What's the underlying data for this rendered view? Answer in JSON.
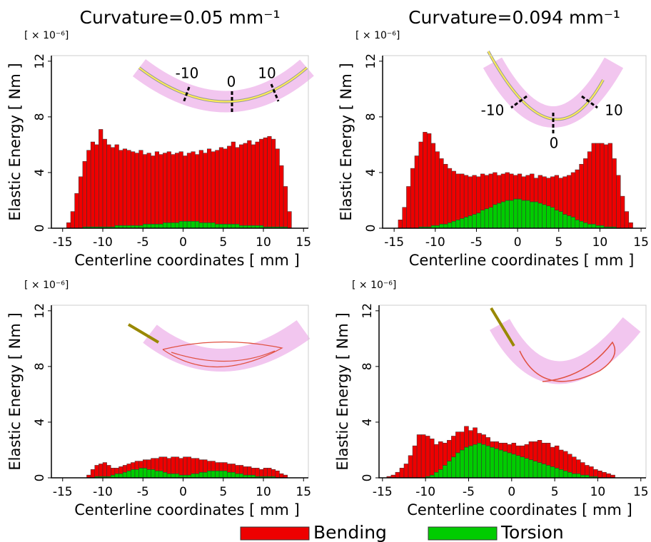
{
  "chart_data": [
    {
      "type": "histogram",
      "title": "Curvature=0.05 mm⁻¹",
      "y_multiplier": "[ × 10⁻⁶]",
      "ylabel": "Elastic Energy  [ Nm ]",
      "xlabel": "Centerline coordinates [ mm ]",
      "annotations": [
        "-10",
        "0",
        "10"
      ],
      "bins": [
        -15,
        -14.5,
        -14,
        -13.5,
        -13,
        -12.5,
        -12,
        -11.5,
        -11,
        -10.5,
        -10,
        -9.5,
        -9,
        -8.5,
        -8,
        -7.5,
        -7,
        -6.5,
        -6,
        -5.5,
        -5,
        -4.5,
        -4,
        -3.5,
        -3,
        -2.5,
        -2,
        -1.5,
        -1,
        -0.5,
        0,
        0.5,
        1,
        1.5,
        2,
        2.5,
        3,
        3.5,
        4,
        4.5,
        5,
        5.5,
        6,
        6.5,
        7,
        7.5,
        8,
        8.5,
        9,
        9.5,
        10,
        10.5,
        11,
        11.5,
        12,
        12.5,
        13,
        13.5,
        14,
        14.5,
        15
      ],
      "series": [
        {
          "name": "Torsion",
          "color": "#00cc00",
          "values": [
            0,
            0,
            0,
            0,
            0,
            0.1,
            0.1,
            0.1,
            0.1,
            0.1,
            0.1,
            0.1,
            0.1,
            0.2,
            0.2,
            0.2,
            0.2,
            0.2,
            0.2,
            0.2,
            0.3,
            0.3,
            0.3,
            0.3,
            0.3,
            0.4,
            0.4,
            0.4,
            0.4,
            0.5,
            0.5,
            0.5,
            0.5,
            0.5,
            0.4,
            0.4,
            0.4,
            0.4,
            0.3,
            0.3,
            0.3,
            0.3,
            0.3,
            0.3,
            0.2,
            0.2,
            0.2,
            0.2,
            0.2,
            0.2,
            0.1,
            0.1,
            0.1,
            0.1,
            0.1,
            0.1,
            0,
            0,
            0,
            0
          ]
        },
        {
          "name": "Bending",
          "color": "#ee0000",
          "values": [
            0,
            0.4,
            1.2,
            2.5,
            3.7,
            4.7,
            5.5,
            6.1,
            5.9,
            7.0,
            6.3,
            5.9,
            5.7,
            5.8,
            5.4,
            5.5,
            5.4,
            5.3,
            5.2,
            5.4,
            5.0,
            5.1,
            4.9,
            5.2,
            5.0,
            5.0,
            5.1,
            4.9,
            5.0,
            5.0,
            4.7,
            4.9,
            5.0,
            4.8,
            5.2,
            5.0,
            5.3,
            5.1,
            5.3,
            5.5,
            5.4,
            5.6,
            5.9,
            5.5,
            5.8,
            5.9,
            6.1,
            5.8,
            6.0,
            6.2,
            6.4,
            6.5,
            6.3,
            5.6,
            4.4,
            2.9,
            1.2,
            0,
            0,
            0
          ]
        }
      ],
      "xlim": [
        -16.4,
        15.6
      ],
      "ylim": [
        0,
        12.4
      ],
      "xticks": [
        -15,
        -10,
        -5,
        0,
        5,
        10,
        15
      ],
      "yticks": [
        0,
        4,
        8,
        12
      ]
    },
    {
      "type": "histogram",
      "title": "Curvature=0.094 mm⁻¹",
      "y_multiplier": "[ × 10⁻⁶]",
      "ylabel": "Elastic Energy  [ Nm ]",
      "xlabel": "Centerline coordinates [ mm ]",
      "annotations": [
        "-10",
        "0",
        "10"
      ],
      "bins": [
        -15,
        -14.5,
        -14,
        -13.5,
        -13,
        -12.5,
        -12,
        -11.5,
        -11,
        -10.5,
        -10,
        -9.5,
        -9,
        -8.5,
        -8,
        -7.5,
        -7,
        -6.5,
        -6,
        -5.5,
        -5,
        -4.5,
        -4,
        -3.5,
        -3,
        -2.5,
        -2,
        -1.5,
        -1,
        -0.5,
        0,
        0.5,
        1,
        1.5,
        2,
        2.5,
        3,
        3.5,
        4,
        4.5,
        5,
        5.5,
        6,
        6.5,
        7,
        7.5,
        8,
        8.5,
        9,
        9.5,
        10,
        10.5,
        11,
        11.5,
        12,
        12.5,
        13,
        13.5,
        14,
        14.5,
        15
      ],
      "series": [
        {
          "color": "#00cc00",
          "values": [
            0,
            0,
            0,
            0,
            0,
            0,
            0.1,
            0.1,
            0.1,
            0.2,
            0.2,
            0.3,
            0.3,
            0.4,
            0.5,
            0.6,
            0.7,
            0.8,
            0.9,
            1.0,
            1.1,
            1.3,
            1.4,
            1.5,
            1.7,
            1.8,
            1.9,
            2.0,
            2.0,
            2.1,
            2.1,
            2.0,
            2.0,
            1.9,
            1.9,
            1.8,
            1.7,
            1.6,
            1.5,
            1.3,
            1.2,
            1.0,
            0.9,
            0.8,
            0.6,
            0.5,
            0.4,
            0.3,
            0.3,
            0.2,
            0.2,
            0.1,
            0.1,
            0.1,
            0,
            0,
            0,
            0,
            0,
            0
          ]
        },
        {
          "color": "#ee0000",
          "values": [
            0,
            0.6,
            1.5,
            3.0,
            4.3,
            5.2,
            6.1,
            6.8,
            6.7,
            5.9,
            5.3,
            4.7,
            4.3,
            3.9,
            3.6,
            3.3,
            3.2,
            3.0,
            2.8,
            2.8,
            2.6,
            2.6,
            2.4,
            2.4,
            2.3,
            2.0,
            2.0,
            2.0,
            1.9,
            1.7,
            1.8,
            1.7,
            1.8,
            2.0,
            1.7,
            2.0,
            2.0,
            2.0,
            2.2,
            2.5,
            2.4,
            2.7,
            2.9,
            3.2,
            3.6,
            4.1,
            4.6,
            5.2,
            5.8,
            5.9,
            5.9,
            5.9,
            6.0,
            4.9,
            3.8,
            2.3,
            1.2,
            0.4,
            0,
            0
          ]
        }
      ],
      "xlim": [
        -16.4,
        15.6
      ],
      "ylim": [
        0,
        12.4
      ],
      "xticks": [
        -15,
        -10,
        -5,
        0,
        5,
        10,
        15
      ],
      "yticks": [
        0,
        4,
        8,
        12
      ]
    },
    {
      "type": "histogram",
      "y_multiplier": "[ × 10⁻⁶]",
      "ylabel": "Elastic Energy  [ Nm ]",
      "xlabel": "Centerline coordinates [ mm ]",
      "bins": [
        -15,
        -14.5,
        -14,
        -13.5,
        -13,
        -12.5,
        -12,
        -11.5,
        -11,
        -10.5,
        -10,
        -9.5,
        -9,
        -8.5,
        -8,
        -7.5,
        -7,
        -6.5,
        -6,
        -5.5,
        -5,
        -4.5,
        -4,
        -3.5,
        -3,
        -2.5,
        -2,
        -1.5,
        -1,
        -0.5,
        0,
        0.5,
        1,
        1.5,
        2,
        2.5,
        3,
        3.5,
        4,
        4.5,
        5,
        5.5,
        6,
        6.5,
        7,
        7.5,
        8,
        8.5,
        9,
        9.5,
        10,
        10.5,
        11,
        11.5,
        12,
        12.5,
        13,
        13.5,
        14,
        14.5,
        15
      ],
      "series": [
        {
          "color": "#00cc00",
          "values": [
            0,
            0,
            0,
            0,
            0,
            0,
            0,
            0,
            0.1,
            0.1,
            0.1,
            0.1,
            0.2,
            0.3,
            0.3,
            0.4,
            0.5,
            0.6,
            0.6,
            0.7,
            0.7,
            0.6,
            0.6,
            0.5,
            0.5,
            0.4,
            0.3,
            0.3,
            0.3,
            0.2,
            0.2,
            0.2,
            0.3,
            0.3,
            0.4,
            0.4,
            0.5,
            0.5,
            0.5,
            0.5,
            0.5,
            0.4,
            0.4,
            0.3,
            0.3,
            0.2,
            0.2,
            0.2,
            0.1,
            0.1,
            0.1,
            0.1,
            0.1,
            0,
            0,
            0,
            0,
            0,
            0,
            0
          ]
        },
        {
          "color": "#ee0000",
          "values": [
            0,
            0,
            0,
            0,
            0,
            0,
            0.2,
            0.6,
            0.8,
            0.9,
            1.0,
            0.8,
            0.5,
            0.4,
            0.5,
            0.5,
            0.5,
            0.5,
            0.6,
            0.5,
            0.6,
            0.7,
            0.8,
            0.9,
            1.0,
            1.1,
            1.1,
            1.2,
            1.2,
            1.2,
            1.3,
            1.3,
            1.1,
            1.1,
            0.9,
            0.9,
            0.7,
            0.7,
            0.6,
            0.6,
            0.6,
            0.6,
            0.6,
            0.6,
            0.6,
            0.6,
            0.6,
            0.5,
            0.6,
            0.5,
            0.6,
            0.6,
            0.5,
            0.5,
            0.3,
            0.2,
            0,
            0,
            0,
            0
          ]
        }
      ],
      "xlim": [
        -16.4,
        15.6
      ],
      "ylim": [
        0,
        12.4
      ],
      "xticks": [
        -15,
        -10,
        -5,
        0,
        5,
        10,
        15
      ],
      "yticks": [
        0,
        4,
        8,
        12
      ]
    },
    {
      "type": "histogram",
      "y_multiplier": "[ × 10⁻⁶]",
      "ylabel": "Elastic Energy  [ Nm ]",
      "xlabel": "Centerline coordinates [ mm ]",
      "bins": [
        -15,
        -14.5,
        -14,
        -13.5,
        -13,
        -12.5,
        -12,
        -11.5,
        -11,
        -10.5,
        -10,
        -9.5,
        -9,
        -8.5,
        -8,
        -7.5,
        -7,
        -6.5,
        -6,
        -5.5,
        -5,
        -4.5,
        -4,
        -3.5,
        -3,
        -2.5,
        -2,
        -1.5,
        -1,
        -0.5,
        0,
        0.5,
        1,
        1.5,
        2,
        2.5,
        3,
        3.5,
        4,
        4.5,
        5,
        5.5,
        6,
        6.5,
        7,
        7.5,
        8,
        8.5,
        9,
        9.5,
        10,
        10.5,
        11,
        11.5,
        12,
        12.5,
        13,
        13.5,
        14,
        14.5,
        15
      ],
      "series": [
        {
          "color": "#00cc00",
          "values": [
            0,
            0,
            0,
            0,
            0,
            0,
            0,
            0,
            0,
            0,
            0.1,
            0.2,
            0.4,
            0.6,
            0.9,
            1.2,
            1.5,
            1.8,
            2.0,
            2.2,
            2.3,
            2.4,
            2.5,
            2.4,
            2.3,
            2.2,
            2.1,
            2.0,
            1.9,
            1.8,
            1.7,
            1.6,
            1.5,
            1.4,
            1.3,
            1.2,
            1.1,
            1.0,
            0.9,
            0.8,
            0.7,
            0.6,
            0.5,
            0.4,
            0.3,
            0.3,
            0.2,
            0.2,
            0.1,
            0.1,
            0,
            0,
            0,
            0,
            0,
            0,
            0,
            0,
            0,
            0
          ]
        },
        {
          "color": "#ee0000",
          "values": [
            0,
            0.1,
            0.2,
            0.4,
            0.7,
            1.0,
            1.6,
            2.3,
            3.1,
            3.1,
            2.9,
            2.6,
            2.0,
            2.0,
            1.6,
            1.5,
            1.5,
            1.5,
            1.3,
            1.5,
            1.1,
            1.2,
            0.7,
            0.7,
            0.6,
            0.4,
            0.5,
            0.5,
            0.6,
            0.6,
            0.8,
            0.7,
            0.8,
            1.0,
            1.3,
            1.4,
            1.6,
            1.5,
            1.6,
            1.4,
            1.6,
            1.4,
            1.4,
            1.3,
            1.2,
            1.0,
            0.9,
            0.7,
            0.7,
            0.5,
            0.5,
            0.4,
            0.3,
            0.2,
            0,
            0,
            0,
            0,
            0,
            0
          ]
        }
      ],
      "xlim": [
        -15.4,
        15.6
      ],
      "ylim": [
        0,
        12.4
      ],
      "xticks": [
        -15,
        -10,
        -5,
        0,
        5,
        10,
        15
      ],
      "yticks": [
        0,
        4,
        8,
        12
      ]
    }
  ]
}
